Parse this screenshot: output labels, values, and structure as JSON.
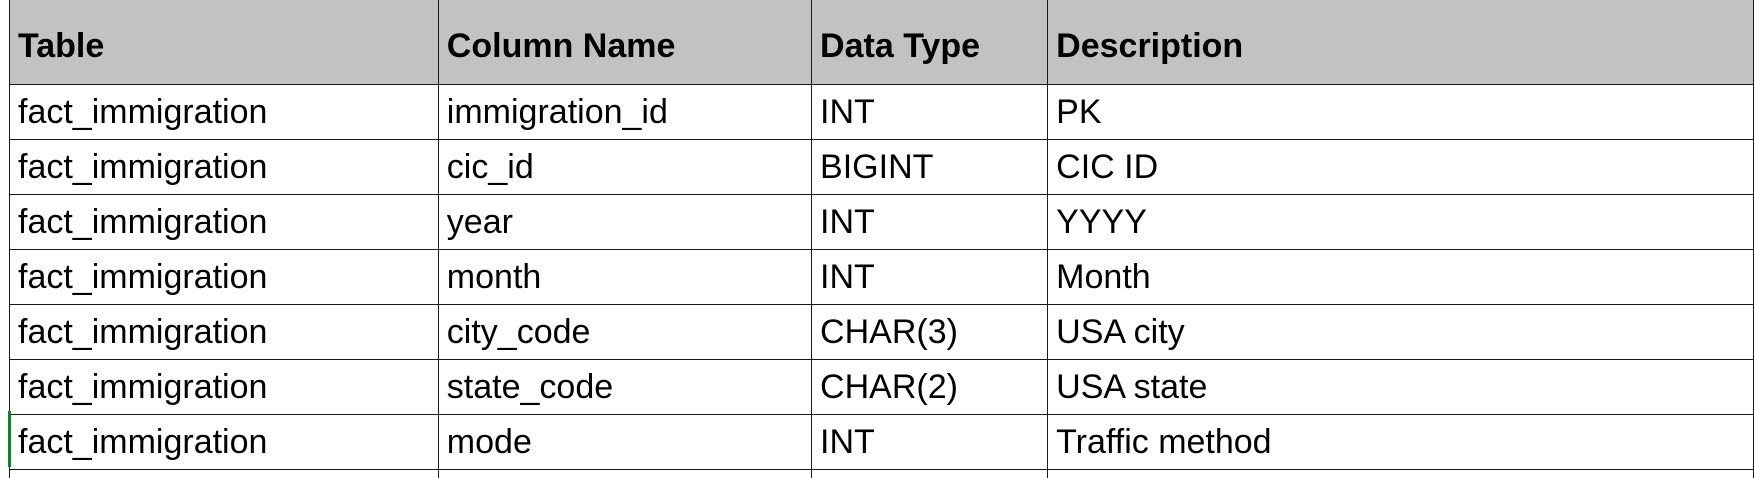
{
  "table": {
    "headers": [
      "Table",
      "Column Name",
      "Data Type",
      "Description"
    ],
    "rows": [
      [
        "fact_immigration",
        "immigration_id",
        "INT",
        "PK"
      ],
      [
        "fact_immigration",
        "cic_id",
        "BIGINT",
        "CIC ID"
      ],
      [
        "fact_immigration",
        "year",
        "INT",
        "YYYY"
      ],
      [
        "fact_immigration",
        "month",
        "INT",
        "Month"
      ],
      [
        "fact_immigration",
        "city_code",
        "CHAR(3)",
        "USA city"
      ],
      [
        "fact_immigration",
        "state_code",
        "CHAR(2)",
        "USA state"
      ],
      [
        "fact_immigration",
        "mode",
        "INT",
        "Traffic method"
      ]
    ]
  },
  "colors": {
    "header_fill": "#c2c2c2",
    "grid_line": "#1a1a1a",
    "selection": "#1f7a3a"
  }
}
